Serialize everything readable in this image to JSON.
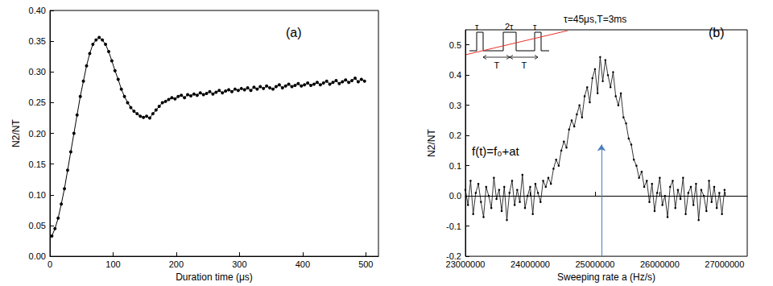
{
  "chart_data": [
    {
      "type": "line",
      "title": "(a)",
      "x_label": "Duration time (μs)",
      "y_label": "N2/NT",
      "color": "#000000",
      "marker": "circle",
      "line_style": "solid",
      "x": [
        3,
        8,
        13,
        18,
        23,
        28,
        33,
        38,
        43,
        48,
        53,
        58,
        63,
        68,
        73,
        78,
        83,
        88,
        93,
        98,
        103,
        108,
        113,
        118,
        123,
        128,
        133,
        138,
        143,
        148,
        153,
        158,
        163,
        168,
        173,
        178,
        183,
        188,
        193,
        198,
        203,
        208,
        213,
        218,
        223,
        228,
        233,
        238,
        243,
        248,
        253,
        258,
        263,
        268,
        273,
        278,
        283,
        288,
        293,
        298,
        303,
        308,
        313,
        318,
        323,
        328,
        333,
        338,
        343,
        348,
        353,
        358,
        363,
        368,
        373,
        378,
        383,
        388,
        393,
        398,
        403,
        408,
        413,
        418,
        423,
        428,
        433,
        438,
        443,
        448,
        453,
        458,
        463,
        468,
        473,
        478,
        483,
        488,
        493,
        498
      ],
      "values": [
        0.033,
        0.045,
        0.062,
        0.085,
        0.11,
        0.14,
        0.17,
        0.2,
        0.23,
        0.26,
        0.285,
        0.31,
        0.33,
        0.345,
        0.352,
        0.356,
        0.352,
        0.345,
        0.333,
        0.318,
        0.302,
        0.288,
        0.272,
        0.26,
        0.25,
        0.242,
        0.236,
        0.232,
        0.228,
        0.226,
        0.228,
        0.225,
        0.232,
        0.238,
        0.244,
        0.25,
        0.252,
        0.255,
        0.258,
        0.256,
        0.26,
        0.262,
        0.258,
        0.263,
        0.261,
        0.264,
        0.262,
        0.266,
        0.263,
        0.265,
        0.268,
        0.264,
        0.267,
        0.27,
        0.266,
        0.269,
        0.271,
        0.268,
        0.272,
        0.27,
        0.273,
        0.271,
        0.274,
        0.27,
        0.275,
        0.272,
        0.276,
        0.273,
        0.277,
        0.274,
        0.272,
        0.276,
        0.279,
        0.274,
        0.277,
        0.28,
        0.276,
        0.278,
        0.281,
        0.277,
        0.279,
        0.282,
        0.278,
        0.28,
        0.283,
        0.279,
        0.282,
        0.285,
        0.28,
        0.283,
        0.286,
        0.281,
        0.284,
        0.287,
        0.283,
        0.286,
        0.29,
        0.284,
        0.288,
        0.285
      ],
      "xlim": [
        0,
        520
      ],
      "xticks": [
        0,
        100,
        200,
        300,
        400,
        500
      ],
      "ylim": [
        0,
        0.4
      ],
      "yticks": [
        {
          "value": 0,
          "label": "0.00"
        },
        0.05,
        {
          "value": 0.1,
          "label": "0.10"
        },
        0.15,
        {
          "value": 0.2,
          "label": "0.20"
        },
        0.25,
        {
          "value": 0.3,
          "label": "0.30"
        },
        0.35,
        {
          "value": 0.4,
          "label": "0.40"
        }
      ],
      "grid": false
    },
    {
      "type": "line",
      "title": "(b)",
      "x_label": "Sweeping rate a (Hz/s)",
      "y_label": "N2/NT",
      "color": "#000000",
      "marker": "circle",
      "line_style": "solid",
      "annotations": [
        "τ=45μs,T=3ms",
        "f(t)=f₀+at"
      ],
      "inset": {
        "pulse_labels": [
          "τ",
          "2τ",
          "τ"
        ],
        "period_labels": [
          "T",
          "T"
        ],
        "color": "#000000",
        "sweep_color": "#e8302a"
      },
      "arrow": {
        "x": 25100000,
        "y_from": -0.2,
        "y_to": 0.17,
        "color": "#4a7ebb"
      },
      "x": [
        23000000,
        23040000,
        23080000,
        23120000,
        23160000,
        23200000,
        23240000,
        23280000,
        23320000,
        23360000,
        23400000,
        23440000,
        23480000,
        23520000,
        23560000,
        23600000,
        23640000,
        23680000,
        23720000,
        23760000,
        23800000,
        23840000,
        23880000,
        23920000,
        23960000,
        24000000,
        24040000,
        24080000,
        24120000,
        24160000,
        24200000,
        24240000,
        24280000,
        24320000,
        24360000,
        24400000,
        24440000,
        24480000,
        24520000,
        24560000,
        24600000,
        24640000,
        24680000,
        24720000,
        24760000,
        24800000,
        24840000,
        24880000,
        24920000,
        24960000,
        25000000,
        25040000,
        25080000,
        25120000,
        25160000,
        25200000,
        25240000,
        25280000,
        25320000,
        25360000,
        25400000,
        25440000,
        25480000,
        25520000,
        25560000,
        25600000,
        25640000,
        25680000,
        25720000,
        25760000,
        25800000,
        25840000,
        25880000,
        25920000,
        25960000,
        26000000,
        26040000,
        26080000,
        26120000,
        26160000,
        26200000,
        26240000,
        26280000,
        26320000,
        26360000,
        26400000,
        26440000,
        26480000,
        26520000,
        26560000,
        26600000,
        26640000,
        26680000,
        26720000,
        26760000,
        26800000,
        26840000,
        26880000,
        26920000,
        26960000,
        27000000
      ],
      "values": [
        0.02,
        -0.03,
        0.05,
        -0.06,
        0.01,
        0.04,
        -0.02,
        -0.07,
        0.03,
        0.0,
        -0.04,
        0.06,
        -0.01,
        0.02,
        -0.05,
        0.03,
        -0.08,
        0.01,
        0.05,
        -0.03,
        0.02,
        -0.02,
        0.07,
        -0.04,
        0.0,
        0.03,
        -0.06,
        0.04,
        0.01,
        -0.02,
        0.05,
        0.03,
        0.06,
        0.04,
        0.09,
        0.12,
        0.1,
        0.15,
        0.18,
        0.16,
        0.22,
        0.25,
        0.23,
        0.27,
        0.3,
        0.26,
        0.33,
        0.36,
        0.31,
        0.39,
        0.42,
        0.34,
        0.46,
        0.38,
        0.45,
        0.4,
        0.36,
        0.41,
        0.33,
        0.3,
        0.34,
        0.26,
        0.24,
        0.19,
        0.17,
        0.12,
        0.1,
        0.06,
        0.08,
        0.03,
        0.05,
        -0.02,
        0.04,
        -0.05,
        0.01,
        0.06,
        -0.03,
        0.0,
        -0.07,
        0.03,
        0.05,
        -0.04,
        0.02,
        -0.01,
        0.06,
        -0.06,
        0.01,
        0.03,
        -0.03,
        0.04,
        -0.08,
        0.02,
        0.0,
        -0.05,
        0.05,
        -0.02,
        0.03,
        -0.04,
        0.01,
        -0.06,
        0.02
      ],
      "xlim": [
        23000000,
        27350000
      ],
      "xticks": [
        23000000,
        24000000,
        25000000,
        26000000,
        27000000
      ],
      "ylim": [
        -0.2,
        0.55
      ],
      "yticks": [
        -0.2,
        -0.1,
        {
          "value": 0,
          "label": "0.0"
        },
        0.1,
        0.2,
        0.3,
        0.4,
        0.5
      ],
      "grid": false
    }
  ]
}
